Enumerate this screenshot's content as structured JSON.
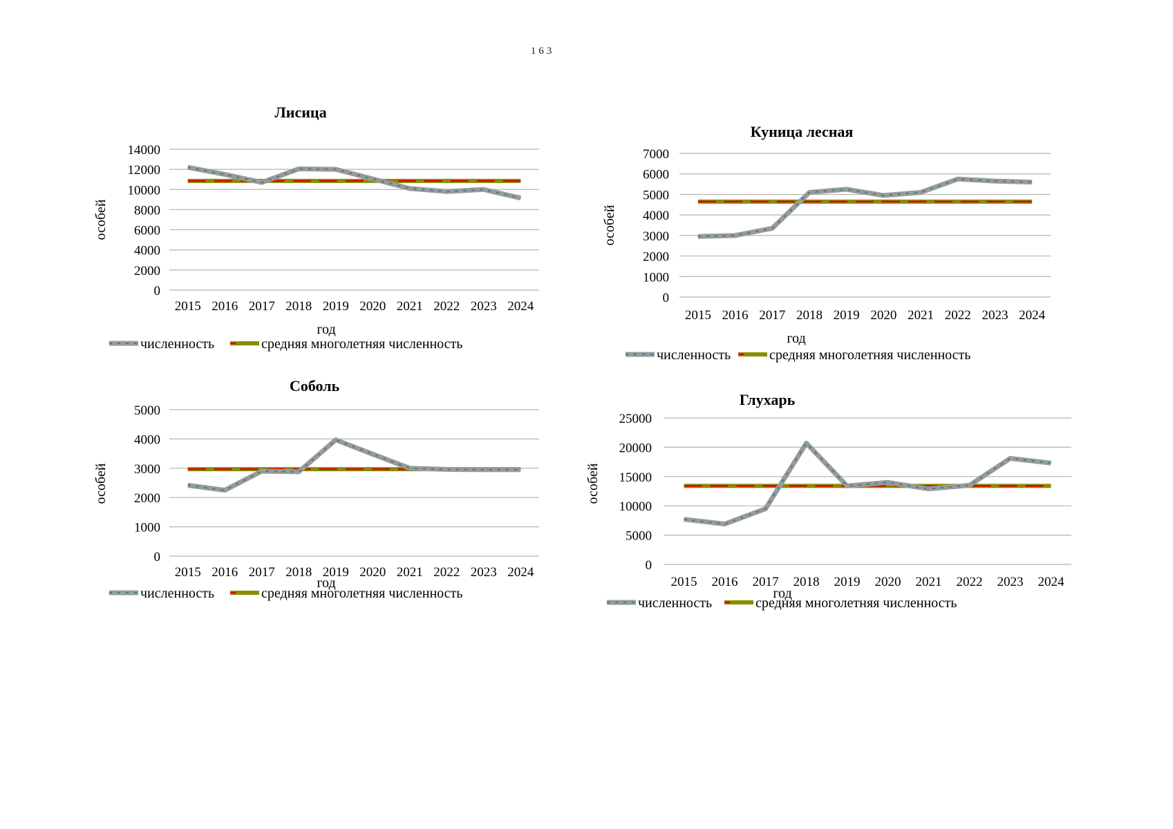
{
  "page": {
    "number": "163"
  },
  "colors": {
    "background": "#ffffff",
    "text": "#000000",
    "gridline": "#b3b3b3",
    "series": "#9a9a9a",
    "series_dash": "#2f8294",
    "average": "#8c8c00",
    "average_dash": "#e00000"
  },
  "legend": {
    "series_label": "численность",
    "average_label": "средняя многолетняя численность"
  },
  "chart_data": [
    {
      "type": "line",
      "title": "Лисица",
      "ylabel": "особей",
      "xlabel": "год",
      "grid": true,
      "legend_position": "bottom",
      "categories": [
        "2015",
        "2016",
        "2017",
        "2018",
        "2019",
        "2020",
        "2021",
        "2022",
        "2023",
        "2024"
      ],
      "ylim": [
        0,
        14000
      ],
      "ytick_step": 2000,
      "series": [
        {
          "name": "численность",
          "values": [
            12200,
            11500,
            10700,
            12050,
            12000,
            11050,
            10100,
            9800,
            10000,
            9150
          ]
        },
        {
          "name": "средняя многолетняя численность",
          "constant": 10850
        }
      ]
    },
    {
      "type": "line",
      "title": "Куница лесная",
      "ylabel": "особей",
      "xlabel": "год",
      "grid": true,
      "legend_position": "bottom",
      "categories": [
        "2015",
        "2016",
        "2017",
        "2018",
        "2019",
        "2020",
        "2021",
        "2022",
        "2023",
        "2024"
      ],
      "ylim": [
        0,
        7000
      ],
      "ytick_step": 1000,
      "series": [
        {
          "name": "численность",
          "values": [
            2950,
            3000,
            3350,
            5100,
            5250,
            4950,
            5100,
            5750,
            5650,
            5600
          ]
        },
        {
          "name": "средняя многолетняя численность",
          "constant": 4650
        }
      ]
    },
    {
      "type": "line",
      "title": "Соболь",
      "ylabel": "особей",
      "xlabel": "год",
      "grid": true,
      "legend_position": "bottom",
      "categories": [
        "2015",
        "2016",
        "2017",
        "2018",
        "2019",
        "2020",
        "2021",
        "2022",
        "2023",
        "2024"
      ],
      "ylim": [
        0,
        5000
      ],
      "ytick_step": 1000,
      "series": [
        {
          "name": "численность",
          "values": [
            2420,
            2250,
            2900,
            2880,
            3970,
            3480,
            3000,
            2960,
            2950,
            2950
          ]
        },
        {
          "name": "средняя многолетняя численность",
          "constant": 2970
        }
      ]
    },
    {
      "type": "line",
      "title": "Глухарь",
      "ylabel": "особей",
      "xlabel": "год",
      "grid": true,
      "legend_position": "bottom",
      "categories": [
        "2015",
        "2016",
        "2017",
        "2018",
        "2019",
        "2020",
        "2021",
        "2022",
        "2023",
        "2024"
      ],
      "ylim": [
        0,
        25000
      ],
      "ytick_step": 5000,
      "series": [
        {
          "name": "численность",
          "values": [
            7700,
            6900,
            9500,
            20700,
            13400,
            14000,
            12900,
            13500,
            18100,
            17300
          ]
        },
        {
          "name": "средняя многолетняя численность",
          "constant": 13400
        }
      ]
    }
  ]
}
